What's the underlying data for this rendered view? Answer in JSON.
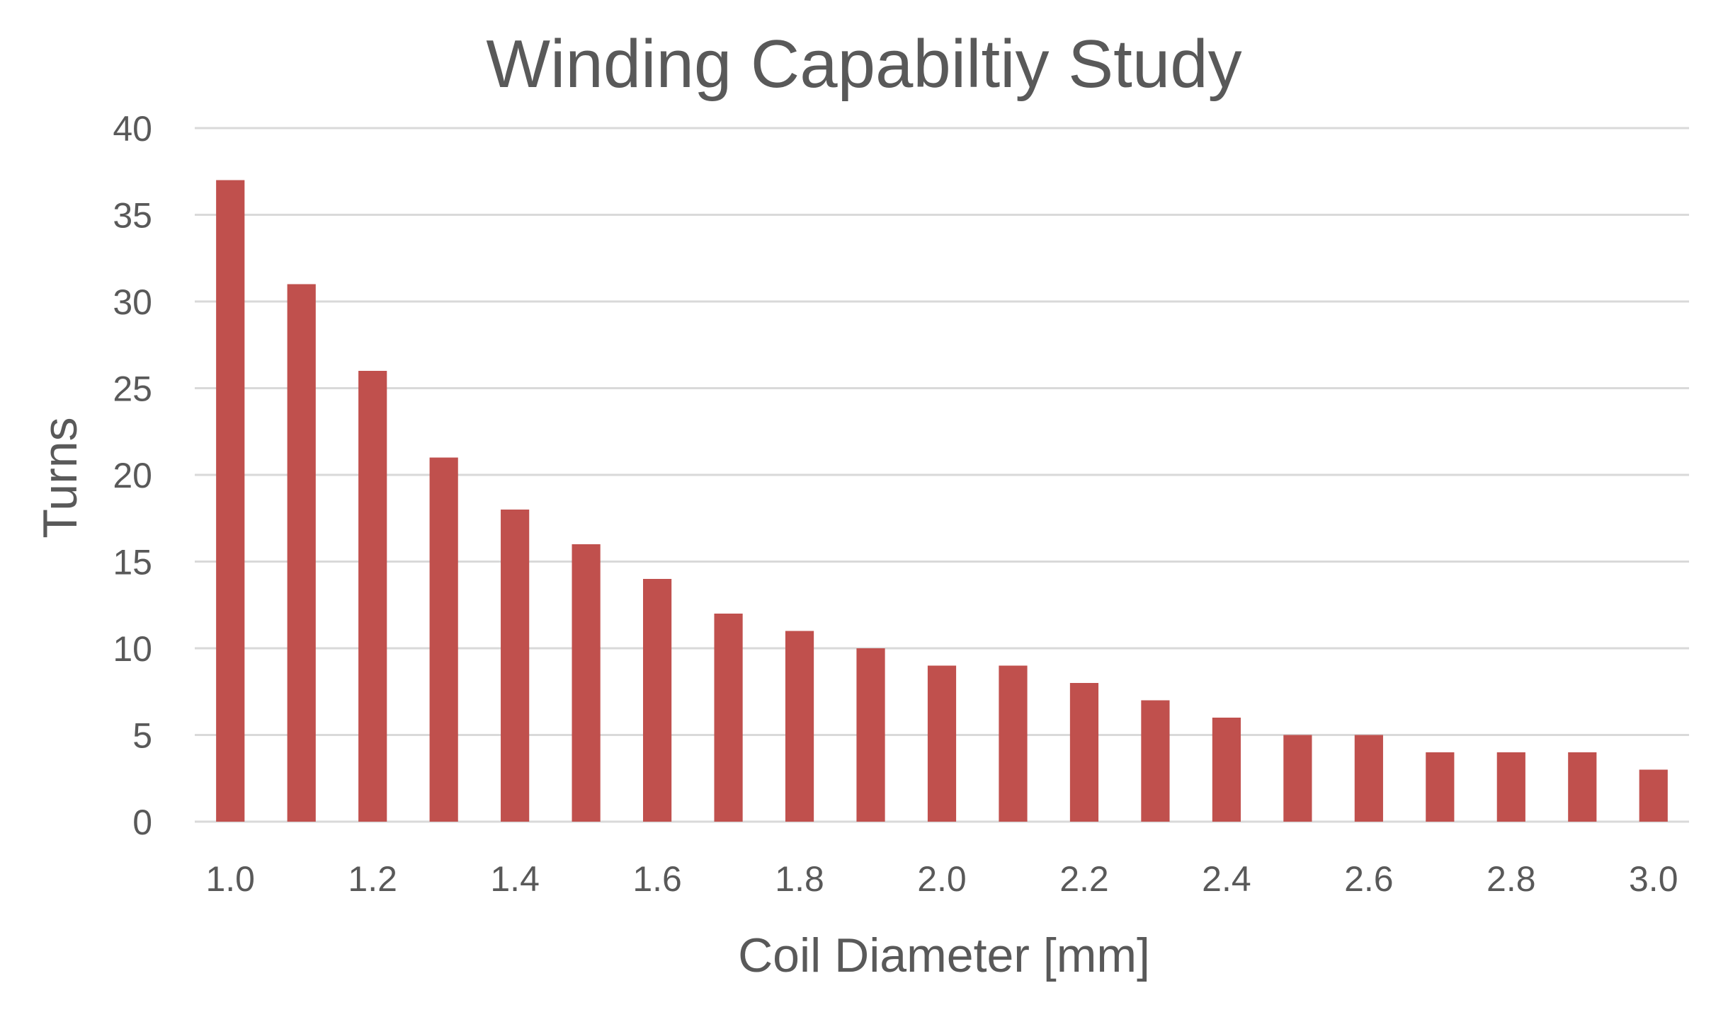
{
  "chart_data": {
    "type": "bar",
    "title": "Winding Capabiltiy Study",
    "xlabel": "Coil Diameter [mm]",
    "ylabel": "Turns",
    "ylim": [
      0,
      40
    ],
    "y_ticks": [
      "0",
      "5",
      "10",
      "15",
      "20",
      "25",
      "30",
      "35",
      "40"
    ],
    "x_tick_labels": [
      "1.0",
      "1.2",
      "1.4",
      "1.6",
      "1.8",
      "2.0",
      "2.2",
      "2.4",
      "2.6",
      "2.8",
      "3.0"
    ],
    "categories": [
      "1.0",
      "1.1",
      "1.2",
      "1.3",
      "1.4",
      "1.5",
      "1.6",
      "1.7",
      "1.8",
      "1.9",
      "2.0",
      "2.1",
      "2.2",
      "2.3",
      "2.4",
      "2.5",
      "2.6",
      "2.7",
      "2.8",
      "2.9",
      "3.0"
    ],
    "values": [
      37,
      31,
      26,
      21,
      18,
      16,
      14,
      12,
      11,
      10,
      9,
      9,
      8,
      7,
      6,
      5,
      5,
      4,
      4,
      4,
      3
    ],
    "bar_color": "#c0504d",
    "grid": true,
    "legend": "none"
  }
}
